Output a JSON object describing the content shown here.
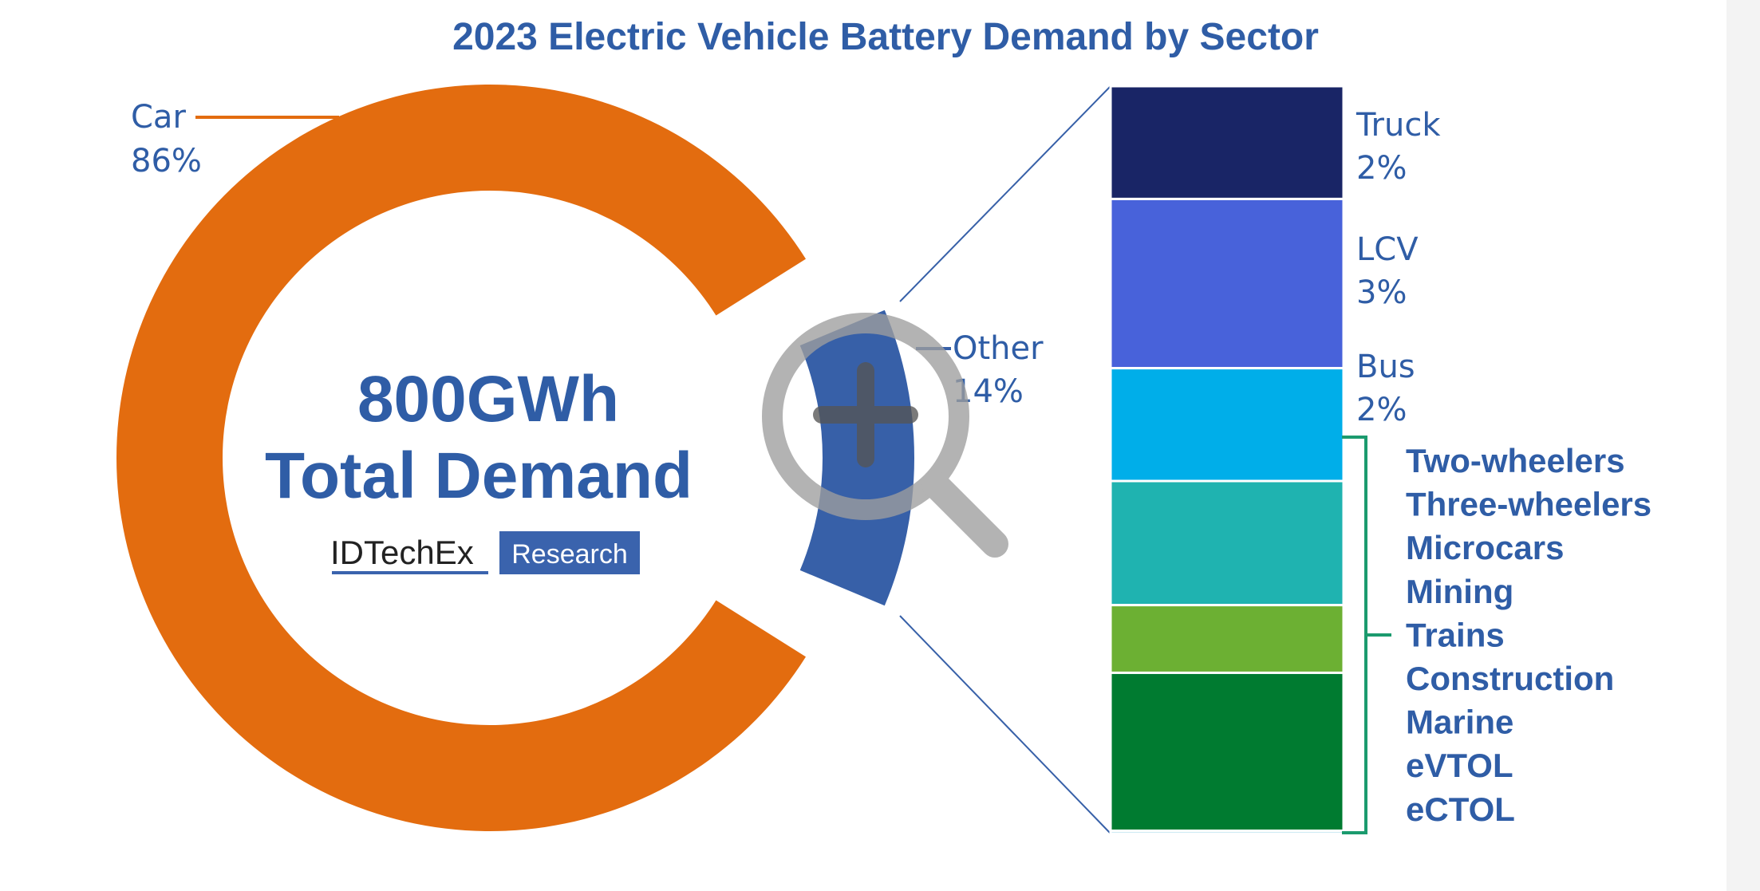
{
  "colors": {
    "title": "#2f5da6",
    "label": "#2f5da6",
    "car": "#e36c0f",
    "other": "#3760a8",
    "connector": "#3760a8",
    "bracket": "#1b9b6e",
    "logo_box": "#3a63ad",
    "logo_text": "#222222",
    "magnifier": "#9e9e9e"
  },
  "center": {
    "line1": "800GWh",
    "line2": "Total Demand"
  },
  "logo": {
    "name": "IDTechEx",
    "tag": "Research"
  },
  "zoom_icon": "zoom-in-magnifier-icon",
  "chart_data": [
    {
      "type": "pie",
      "title": "2023 Electric Vehicle Battery Demand by Sector",
      "total_label": "800GWh Total Demand",
      "slices": [
        {
          "name": "Car",
          "percent_label": "86%",
          "value": 86,
          "color": "#e36c0f"
        },
        {
          "name": "Other",
          "percent_label": "14%",
          "value": 14,
          "color": "#3760a8"
        }
      ]
    },
    {
      "type": "bar",
      "stacked": true,
      "series": [
        {
          "name": "Truck",
          "percent_label": "2%",
          "value": 2,
          "color": "#192566"
        },
        {
          "name": "LCV",
          "percent_label": "3%",
          "value": 3,
          "color": "#4862da"
        },
        {
          "name": "Bus",
          "percent_label": "2%",
          "value": 2,
          "color": "#00aee9"
        },
        {
          "name": "",
          "value": 2.2,
          "color": "#1fb3b0"
        },
        {
          "name": "",
          "value": 1.2,
          "color": "#6cb033"
        },
        {
          "name": "",
          "value": 2.8,
          "color": "#007b30"
        },
        {
          "name": "",
          "value": 0.05,
          "color": "#9fd6e9"
        }
      ],
      "group_labels": [
        "Two-wheelers",
        "Three-wheelers",
        "Microcars",
        "Mining",
        "Trains",
        "Construction",
        "Marine",
        "eVTOL",
        "eCTOL"
      ]
    }
  ]
}
